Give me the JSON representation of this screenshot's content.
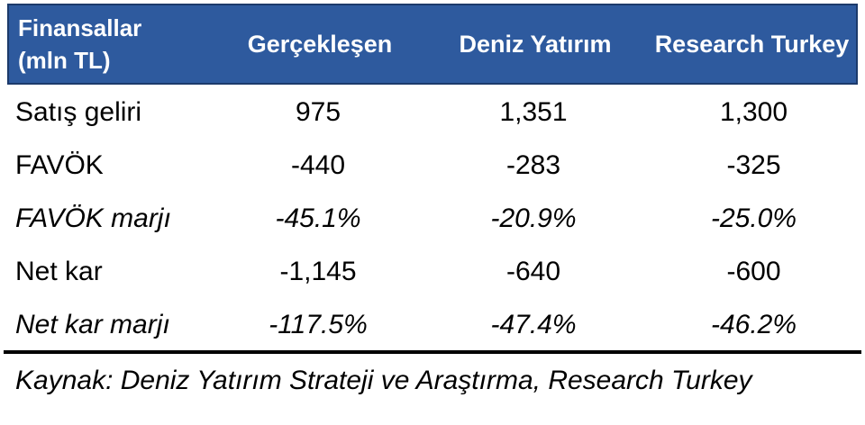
{
  "table": {
    "header": {
      "label_line1": "Finansallar",
      "label_line2": "(mln TL)",
      "columns": [
        "Gerçekleşen",
        "Deniz Yatırım",
        "Research Turkey"
      ]
    },
    "rows": [
      {
        "label": "Satış geliri",
        "values": [
          "975",
          "1,351",
          "1,300"
        ]
      },
      {
        "label": "FAVÖK",
        "values": [
          "-440",
          "-283",
          "-325"
        ]
      },
      {
        "label": "FAVÖK marjı",
        "values": [
          "-45.1%",
          "-20.9%",
          "-25.0%"
        ]
      },
      {
        "label": "Net kar",
        "values": [
          "-1,145",
          "-640",
          "-600"
        ]
      },
      {
        "label": "Net kar marjı",
        "values": [
          "-117.5%",
          "-47.4%",
          "-46.2%"
        ]
      }
    ]
  },
  "footer": {
    "source": "Kaynak: Deniz Yatırım Strateji ve Araştırma, Research Turkey"
  },
  "colors": {
    "header_bg": "#2E5A9E",
    "header_border": "#1C3A6B",
    "header_text": "#FFFFFF",
    "body_text": "#000000",
    "divider": "#000000"
  },
  "chart_data": {
    "type": "table",
    "title": "Finansallar (mln TL)",
    "columns": [
      "Finansallar (mln TL)",
      "Gerçekleşen",
      "Deniz Yatırım",
      "Research Turkey"
    ],
    "rows": [
      [
        "Satış geliri",
        975,
        1351,
        1300
      ],
      [
        "FAVÖK",
        -440,
        -283,
        -325
      ],
      [
        "FAVÖK marjı",
        "-45.1%",
        "-20.9%",
        "-25.0%"
      ],
      [
        "Net kar",
        -1145,
        -640,
        -600
      ],
      [
        "Net kar marjı",
        "-117.5%",
        "-47.4%",
        "-46.2%"
      ]
    ],
    "source_note": "Kaynak: Deniz Yatırım Strateji ve Araştırma, Research Turkey"
  }
}
